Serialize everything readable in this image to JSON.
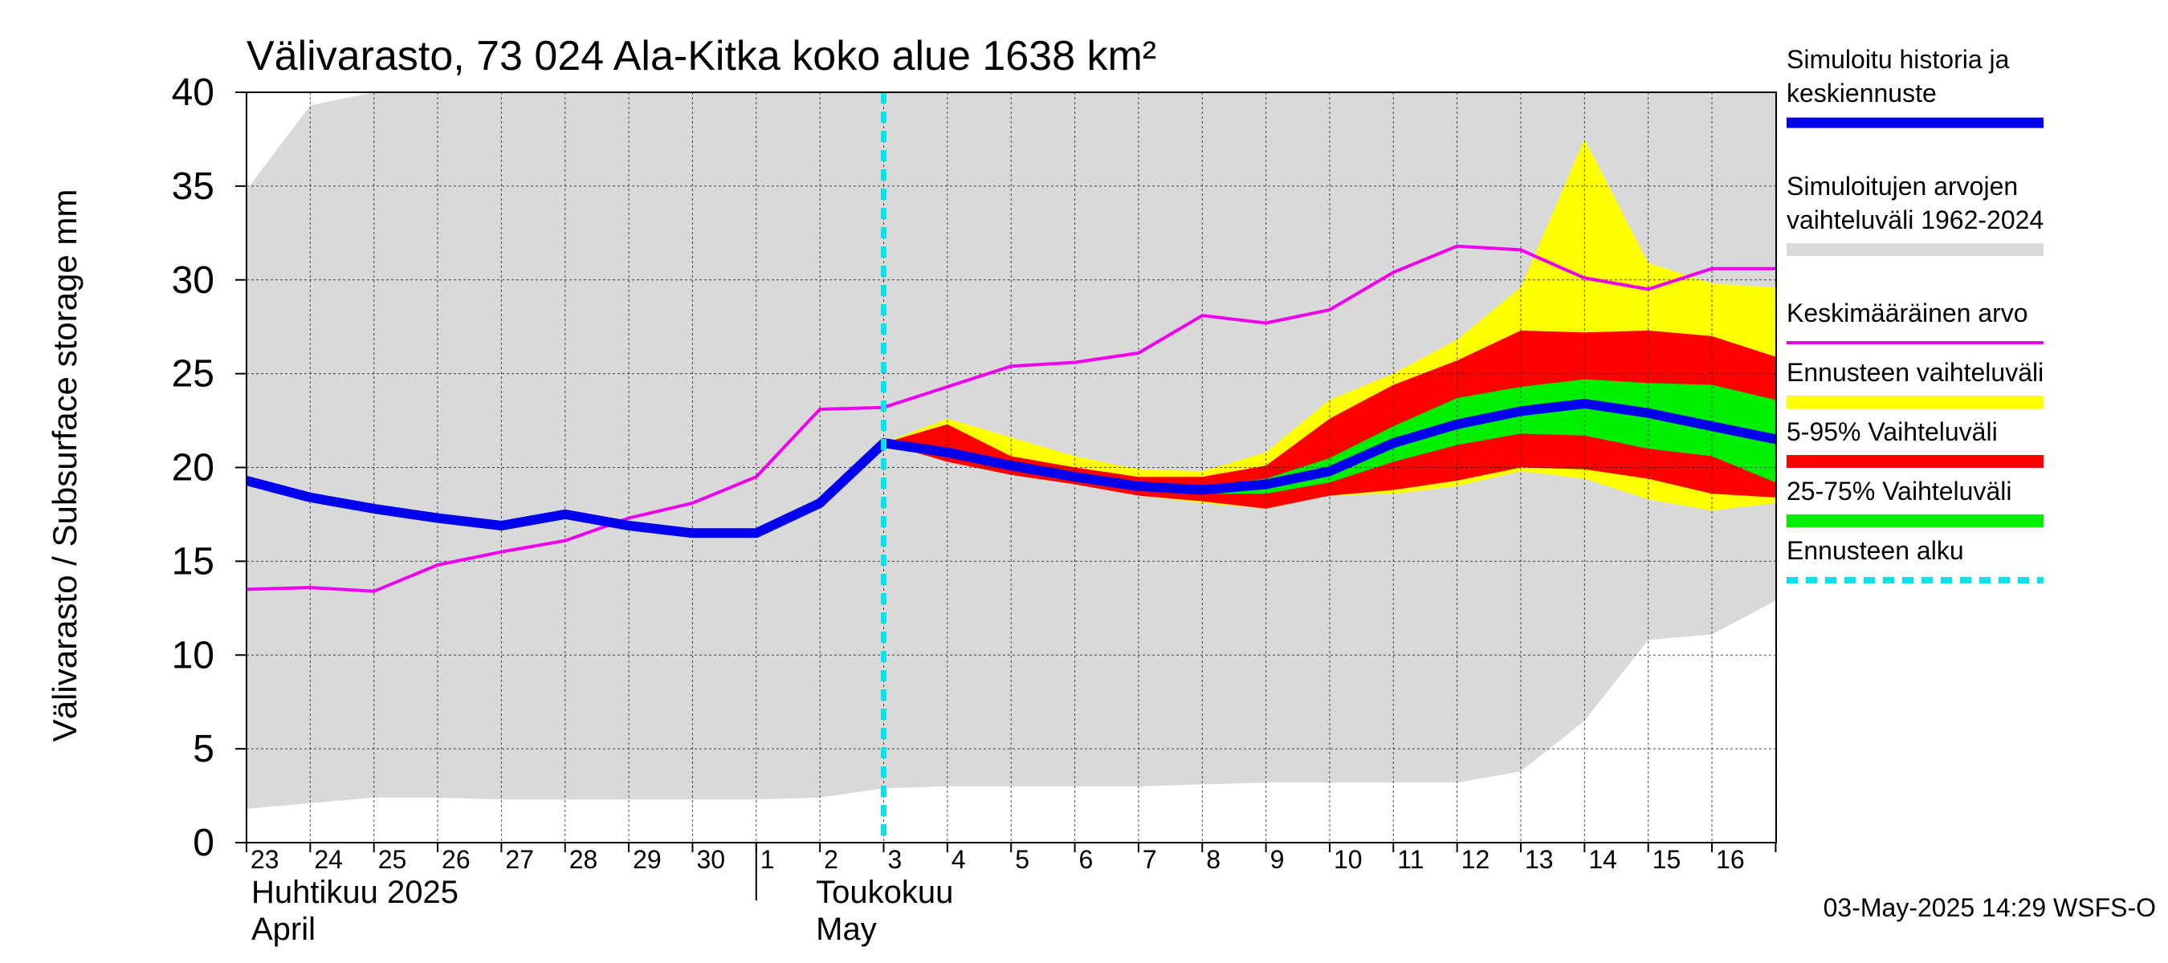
{
  "chart_data": {
    "type": "area",
    "title": "Välivarasto, 73 024 Ala-Kitka koko alue 1638 km²",
    "ylabel": "Välivarasto / Subsurface storage  mm",
    "ylim": [
      0,
      40
    ],
    "yticks": [
      "0",
      "5",
      "10",
      "15",
      "20",
      "25",
      "30",
      "35",
      "40"
    ],
    "x_days": [
      "23",
      "24",
      "25",
      "26",
      "27",
      "28",
      "29",
      "30",
      "1",
      "2",
      "3",
      "4",
      "5",
      "6",
      "7",
      "8",
      "9",
      "10",
      "11",
      "12",
      "13",
      "14",
      "15",
      "16"
    ],
    "x_dates": [
      "2025-04-23",
      "2025-04-24",
      "2025-04-25",
      "2025-04-26",
      "2025-04-27",
      "2025-04-28",
      "2025-04-29",
      "2025-04-30",
      "2025-05-01",
      "2025-05-02",
      "2025-05-03",
      "2025-05-04",
      "2025-05-05",
      "2025-05-06",
      "2025-05-07",
      "2025-05-08",
      "2025-05-09",
      "2025-05-10",
      "2025-05-11",
      "2025-05-12",
      "2025-05-13",
      "2025-05-14",
      "2025-05-15",
      "2025-05-16",
      "2025-05-17"
    ],
    "months": [
      {
        "fi": "Huhtikuu  2025",
        "en": "April"
      },
      {
        "fi": "Toukokuu",
        "en": "May"
      }
    ],
    "grid": true,
    "legend_position": "right",
    "forecast_start": "2025-05-03",
    "hist_range": {
      "color": "#d9d9d9",
      "x": [
        "2025-04-23",
        "2025-04-24",
        "2025-04-25",
        "2025-04-26",
        "2025-04-27",
        "2025-04-28",
        "2025-04-29",
        "2025-04-30",
        "2025-05-01",
        "2025-05-02",
        "2025-05-03",
        "2025-05-04",
        "2025-05-05",
        "2025-05-06",
        "2025-05-07",
        "2025-05-08",
        "2025-05-09",
        "2025-05-10",
        "2025-05-11",
        "2025-05-12",
        "2025-05-13",
        "2025-05-14",
        "2025-05-15",
        "2025-05-16",
        "2025-05-17"
      ],
      "low": [
        1.8,
        2.1,
        2.4,
        2.4,
        2.3,
        2.3,
        2.3,
        2.3,
        2.3,
        2.4,
        2.9,
        3.0,
        3.0,
        3.0,
        3.0,
        3.1,
        3.2,
        3.2,
        3.2,
        3.2,
        3.8,
        6.5,
        10.8,
        11.1,
        12.9
      ],
      "high": [
        34.8,
        39.3,
        40.0,
        40.0,
        40.0,
        40.0,
        40.0,
        40.0,
        40.0,
        40.0,
        40.0,
        40.0,
        40.0,
        40.0,
        40.0,
        40.0,
        40.0,
        40.0,
        40.0,
        40.0,
        40.0,
        40.0,
        40.0,
        40.0,
        40.0
      ]
    },
    "mean": {
      "color": "#ee00ee",
      "x": [
        "2025-04-23",
        "2025-04-24",
        "2025-04-25",
        "2025-04-26",
        "2025-04-27",
        "2025-04-28",
        "2025-04-29",
        "2025-04-30",
        "2025-05-01",
        "2025-05-02",
        "2025-05-03",
        "2025-05-04",
        "2025-05-05",
        "2025-05-06",
        "2025-05-07",
        "2025-05-08",
        "2025-05-09",
        "2025-05-10",
        "2025-05-11",
        "2025-05-12",
        "2025-05-13",
        "2025-05-14",
        "2025-05-15",
        "2025-05-16",
        "2025-05-17"
      ],
      "y": [
        13.5,
        13.6,
        13.4,
        14.8,
        15.5,
        16.1,
        17.3,
        18.1,
        19.5,
        23.1,
        23.2,
        24.3,
        25.4,
        25.6,
        26.1,
        28.1,
        27.7,
        28.4,
        30.4,
        31.8,
        31.6,
        30.1,
        29.5,
        30.6,
        30.6
      ]
    },
    "forecast_x": [
      "2025-05-03",
      "2025-05-04",
      "2025-05-05",
      "2025-05-06",
      "2025-05-07",
      "2025-05-08",
      "2025-05-09",
      "2025-05-10",
      "2025-05-11",
      "2025-05-12",
      "2025-05-13",
      "2025-05-14",
      "2025-05-15",
      "2025-05-16",
      "2025-05-17"
    ],
    "forecast_range": {
      "color": "#ffff00",
      "low": [
        21.3,
        20.3,
        19.6,
        19.1,
        18.5,
        18.1,
        17.8,
        18.5,
        18.6,
        19.0,
        19.8,
        19.4,
        18.3,
        17.7,
        18.1
      ],
      "high": [
        21.3,
        22.6,
        21.6,
        20.6,
        19.9,
        19.8,
        20.8,
        23.6,
        25.0,
        26.8,
        29.6,
        37.5,
        30.9,
        29.8,
        29.6
      ]
    },
    "p5_95": {
      "color": "#ff0000",
      "low": [
        21.3,
        20.3,
        19.6,
        19.1,
        18.5,
        18.2,
        17.8,
        18.5,
        18.8,
        19.3,
        20.0,
        19.9,
        19.4,
        18.6,
        18.4
      ],
      "high": [
        21.3,
        22.3,
        20.6,
        20.0,
        19.5,
        19.5,
        20.1,
        22.6,
        24.4,
        25.7,
        27.3,
        27.2,
        27.3,
        27.0,
        25.9
      ]
    },
    "p25_75": {
      "color": "#00ee00",
      "low": [
        21.3,
        20.6,
        19.9,
        19.3,
        18.8,
        18.6,
        18.6,
        19.2,
        20.3,
        21.2,
        21.8,
        21.7,
        21.0,
        20.6,
        19.2
      ],
      "high": [
        21.3,
        21.0,
        20.2,
        19.7,
        19.2,
        19.0,
        19.4,
        20.5,
        22.2,
        23.7,
        24.3,
        24.7,
        24.5,
        24.4,
        23.6
      ]
    },
    "median": {
      "color": "#0000ee",
      "x": [
        "2025-04-23",
        "2025-04-24",
        "2025-04-25",
        "2025-04-26",
        "2025-04-27",
        "2025-04-28",
        "2025-04-29",
        "2025-04-30",
        "2025-05-01",
        "2025-05-02",
        "2025-05-03",
        "2025-05-04",
        "2025-05-05",
        "2025-05-06",
        "2025-05-07",
        "2025-05-08",
        "2025-05-09",
        "2025-05-10",
        "2025-05-11",
        "2025-05-12",
        "2025-05-13",
        "2025-05-14",
        "2025-05-15",
        "2025-05-16",
        "2025-05-17"
      ],
      "y": [
        19.3,
        18.4,
        17.8,
        17.3,
        16.9,
        17.5,
        16.9,
        16.5,
        16.5,
        18.1,
        21.3,
        20.8,
        20.1,
        19.5,
        19.0,
        18.8,
        19.1,
        19.8,
        21.3,
        22.3,
        23.0,
        23.4,
        22.9,
        22.2,
        21.5
      ]
    },
    "legend": [
      {
        "lines": [
          "Simuloitu historia ja",
          "keskiennuste"
        ],
        "color": "#0000ee",
        "kind": "thick"
      },
      {
        "lines": [
          "Simuloitujen arvojen",
          "vaihteluväli 1962-2024"
        ],
        "color": "#d9d9d9",
        "kind": "band"
      },
      {
        "lines": [
          "Keskimääräinen arvo"
        ],
        "color": "#ee00ee",
        "kind": "thin"
      },
      {
        "lines": [
          "Ennusteen vaihteluväli"
        ],
        "color": "#ffff00",
        "kind": "band"
      },
      {
        "lines": [
          "5-95% Vaihteluväli"
        ],
        "color": "#ff0000",
        "kind": "band"
      },
      {
        "lines": [
          "25-75% Vaihteluväli"
        ],
        "color": "#00ee00",
        "kind": "band"
      },
      {
        "lines": [
          "Ennusteen alku"
        ],
        "color": "#00e5ee",
        "kind": "dashed"
      }
    ],
    "footer": "03-May-2025 14:29 WSFS-O"
  }
}
